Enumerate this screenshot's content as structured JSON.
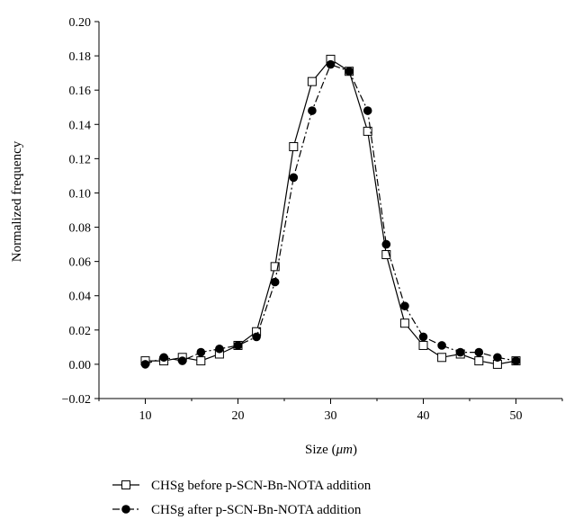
{
  "chart_data": {
    "type": "line",
    "xlabel": "Size (μm)",
    "xlabel_parts": {
      "before": "Size (",
      "unit": "μm",
      "after": ")"
    },
    "ylabel": "Normalized frequency",
    "xlim": [
      5,
      55
    ],
    "ylim": [
      -0.02,
      0.2
    ],
    "x_ticks": [
      10,
      20,
      30,
      40,
      50
    ],
    "x_tick_labels": [
      "10",
      "20",
      "30",
      "40",
      "50"
    ],
    "y_ticks": [
      -0.02,
      0,
      0.02,
      0.04,
      0.06,
      0.08,
      0.1,
      0.12,
      0.14,
      0.16,
      0.18,
      0.2
    ],
    "y_tick_labels": [
      "−0.02",
      "0.00",
      "0.02",
      "0.04",
      "0.06",
      "0.08",
      "0.10",
      "0.12",
      "0.14",
      "0.16",
      "0.18",
      "0.20"
    ],
    "grid": false,
    "legend_position": "bottom",
    "x": [
      10,
      12,
      14,
      16,
      18,
      20,
      22,
      24,
      26,
      28,
      30,
      32,
      34,
      36,
      38,
      40,
      42,
      44,
      46,
      48,
      50
    ],
    "series": [
      {
        "name": "CHSg before p-SCN-Bn-NOTA addition",
        "marker": "open-square",
        "line_style": "solid",
        "values": [
          0.002,
          0.002,
          0.004,
          0.002,
          0.006,
          0.011,
          0.019,
          0.057,
          0.127,
          0.165,
          0.178,
          0.171,
          0.136,
          0.064,
          0.024,
          0.011,
          0.004,
          0.006,
          0.002,
          0.0,
          0.002
        ]
      },
      {
        "name": "CHSg after p-SCN-Bn-NOTA addition",
        "marker": "filled-circle",
        "line_style": "dash-dot",
        "values": [
          0.0,
          0.004,
          0.002,
          0.007,
          0.009,
          0.011,
          0.016,
          0.048,
          0.109,
          0.148,
          0.175,
          0.171,
          0.148,
          0.07,
          0.034,
          0.016,
          0.011,
          0.007,
          0.007,
          0.004,
          0.002
        ]
      }
    ]
  },
  "colors": {
    "line": "#000000",
    "background": "#ffffff"
  }
}
